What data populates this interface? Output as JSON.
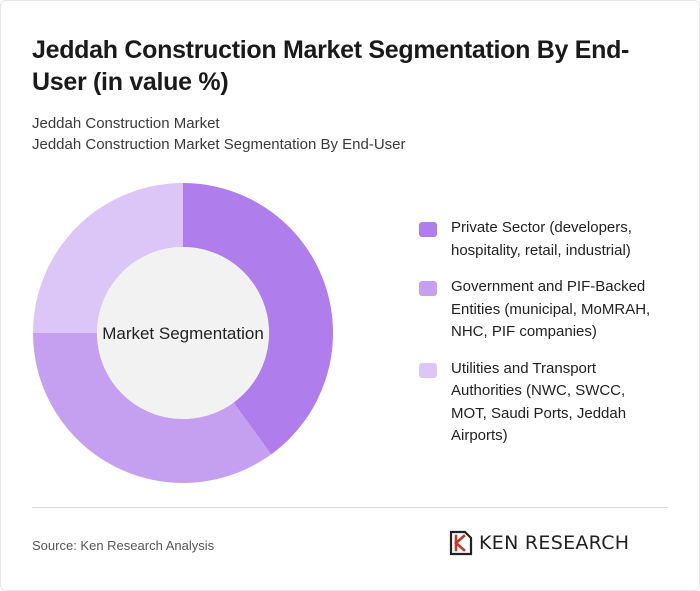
{
  "header": {
    "title": "Jeddah Construction Market Segmentation By End-User (in value %)",
    "subtitle_line1": "Jeddah Construction Market",
    "subtitle_line2": "Jeddah Construction Market Segmentation By End-User"
  },
  "chart_data": {
    "type": "pie",
    "variant": "donut",
    "center_label": "Market Segmentation",
    "categories": [
      "Private Sector (developers, hospitality, retail, industrial)",
      "Government and PIF-Backed Entities (municipal, MoMRAH, NHC, PIF companies)",
      "Utilities and Transport Authorities (NWC, SWCC, MOT, Saudi Ports, Jeddah Airports)"
    ],
    "legend_lines": [
      [
        "Private Sector (developers,",
        "hospitality, retail, industrial)"
      ],
      [
        "Government and PIF-Backed",
        "Entities (municipal, MoMRAH,",
        "NHC, PIF companies)"
      ],
      [
        "Utilities and Transport",
        "Authorities (NWC, SWCC,",
        "MOT, Saudi Ports, Jeddah",
        "Airports)"
      ]
    ],
    "values": [
      40,
      35,
      25
    ],
    "colors": [
      "#b07ded",
      "#c6a0f0",
      "#dcc5f7"
    ],
    "center_fill": "#f2f2f2",
    "legend_position": "right"
  },
  "footer": {
    "source": "Source: Ken Research Analysis",
    "logo_text": "KEN RESEARCH",
    "logo_icon": "ken-research-logo-icon"
  }
}
